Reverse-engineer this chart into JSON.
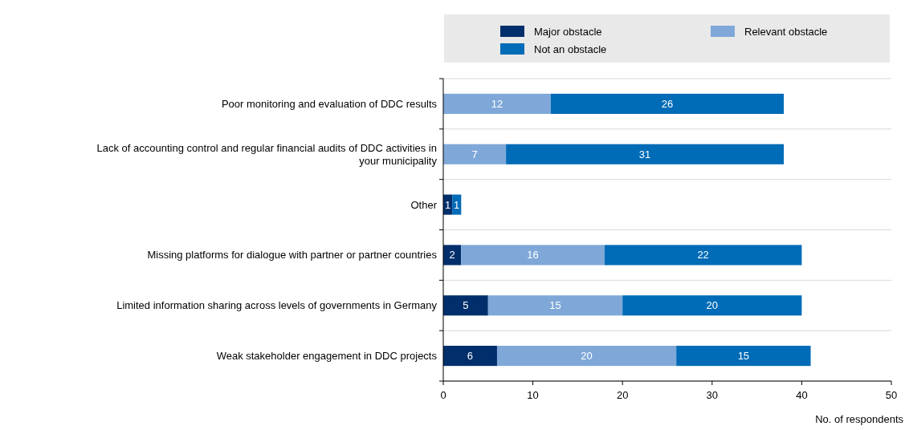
{
  "chart_data": {
    "type": "bar",
    "orientation": "horizontal",
    "stacked": true,
    "xlabel": "No. of respondents",
    "categories": [
      "Poor monitoring and evaluation of DDC results",
      "Lack of accounting control and regular financial audits of DDC activities in your municipality",
      "Other",
      "Missing platforms for dialogue with partner or partner countries",
      "Limited information sharing across levels of governments in Germany",
      "Weak stakeholder engagement in DDC projects"
    ],
    "series": [
      {
        "name": "Major obstacle",
        "color": "#002f6c",
        "values": [
          null,
          null,
          1,
          2,
          5,
          6
        ]
      },
      {
        "name": "Relevant obstacle",
        "color": "#7fa8d9",
        "values": [
          12,
          7,
          null,
          16,
          15,
          20
        ]
      },
      {
        "name": "Not an obstacle",
        "color": "#006bb6",
        "values": [
          26,
          31,
          1,
          22,
          20,
          15
        ]
      }
    ],
    "xlim": [
      0,
      50
    ],
    "xticks": [
      0,
      10,
      20,
      30,
      40,
      50
    ],
    "grid": "y",
    "legend": "top",
    "data_labels": true
  }
}
